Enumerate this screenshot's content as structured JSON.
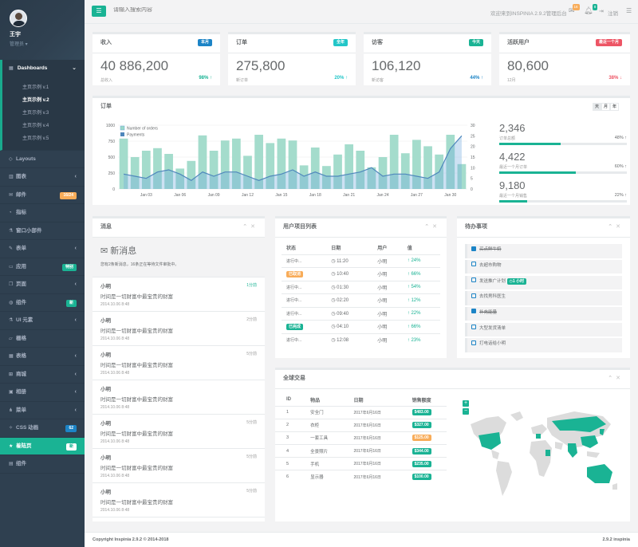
{
  "colors": {
    "primary": "#1ab394",
    "info": "#1c84c6",
    "warning": "#f8ac59",
    "danger": "#ed5565",
    "sidebar": "#2f4050"
  },
  "profile": {
    "name": "王宇",
    "role": "管理员 ▾"
  },
  "sidebar": {
    "dashboards": {
      "label": "Dashboards",
      "subs": [
        "主页示例 v.1",
        "主页示例 v.2",
        "主页示例 v.3",
        "主页示例 v.4",
        "主页示例 v.5"
      ]
    },
    "items": [
      {
        "label": "Layouts",
        "icon": "diamond-icon"
      },
      {
        "label": "图表",
        "icon": "bar-chart-icon"
      },
      {
        "label": "邮件",
        "icon": "envelope-icon",
        "badge": "16/24"
      },
      {
        "label": "指标",
        "icon": "pie-chart-icon"
      },
      {
        "label": "窗口小部件",
        "icon": "flask-icon"
      },
      {
        "label": "表单",
        "icon": "edit-icon"
      },
      {
        "label": "应用",
        "icon": "desktop-icon",
        "badge": "特别"
      },
      {
        "label": "页面",
        "icon": "files-icon"
      },
      {
        "label": "组件",
        "icon": "globe-icon",
        "badge": "新"
      },
      {
        "label": "UI 元素",
        "icon": "flask-icon"
      },
      {
        "label": "栅格",
        "icon": "laptop-icon"
      },
      {
        "label": "表格",
        "icon": "table-icon"
      },
      {
        "label": "商城",
        "icon": "shopping-cart-icon"
      },
      {
        "label": "相册",
        "icon": "picture-icon"
      },
      {
        "label": "菜单",
        "icon": "sitemap-icon"
      },
      {
        "label": "CSS 动画",
        "icon": "magic-icon",
        "badge": "62"
      },
      {
        "label": "着陆页",
        "icon": "star-icon",
        "badge": "新"
      },
      {
        "label": "组件",
        "icon": "database-icon"
      }
    ]
  },
  "topbar": {
    "search_placeholder": "请输入搜索内容",
    "welcome": "欢迎来到INSPINIA 2.9.2管理后台",
    "mail_count": "16",
    "bell_count": "8",
    "logout": "注销"
  },
  "stats": [
    {
      "title": "收入",
      "label": "本月",
      "label_color": "#1c84c6",
      "value": "40 886,200",
      "desc": "总收入",
      "pct": "98% ↑",
      "pct_color": "#1ab394"
    },
    {
      "title": "订单",
      "label": "全年",
      "label_color": "#23c6c8",
      "value": "275,800",
      "desc": "新订单",
      "pct": "20% ↑",
      "pct_color": "#23c6c8"
    },
    {
      "title": "访客",
      "label": "今天",
      "label_color": "#1ab394",
      "value": "106,120",
      "desc": "新访客",
      "pct": "44% ↑",
      "pct_color": "#1c84c6"
    },
    {
      "title": "活跃用户",
      "label": "最近一个月",
      "label_color": "#ed5565",
      "value": "80,600",
      "desc": "12月",
      "pct": "38% ↓",
      "pct_color": "#ed5565"
    }
  ],
  "orders_panel": {
    "title": "订单",
    "buttons": [
      "天",
      "月",
      "年"
    ]
  },
  "chart_data": {
    "type": "bar",
    "x": [
      "Jan 01",
      "Jan 02",
      "Jan 03",
      "Jan 04",
      "Jan 05",
      "Jan 06",
      "Jan 07",
      "Jan 08",
      "Jan 09",
      "Jan 10",
      "Jan 11",
      "Jan 12",
      "Jan 13",
      "Jan 14",
      "Jan 15",
      "Jan 16",
      "Jan 17",
      "Jan 18",
      "Jan 19",
      "Jan 20",
      "Jan 21",
      "Jan 22",
      "Jan 23",
      "Jan 24",
      "Jan 25",
      "Jan 26",
      "Jan 27",
      "Jan 28",
      "Jan 29",
      "Jan 30",
      "Jan 31"
    ],
    "xticks": [
      "Jan 03",
      "Jan 06",
      "Jan 09",
      "Jan 12",
      "Jan 15",
      "Jan 18",
      "Jan 21",
      "Jan 24",
      "Jan 27",
      "Jan 30"
    ],
    "series": [
      {
        "name": "Number of orders",
        "kind": "bar",
        "axis": "left",
        "color": "#9ad8c6",
        "values": [
          790,
          500,
          600,
          640,
          550,
          320,
          440,
          840,
          600,
          760,
          790,
          520,
          850,
          720,
          790,
          760,
          370,
          650,
          360,
          540,
          700,
          600,
          340,
          500,
          850,
          560,
          770,
          670,
          540,
          850,
          390
        ]
      },
      {
        "name": "Payments",
        "kind": "line",
        "axis": "right",
        "color": "#6fa8dc",
        "values": [
          7,
          6,
          5,
          8,
          9,
          7,
          4,
          8,
          6,
          8,
          8,
          6,
          4,
          6,
          7,
          9,
          6,
          8,
          6,
          6,
          7,
          8,
          10,
          6,
          7,
          7,
          6,
          5,
          8,
          19,
          25
        ]
      }
    ],
    "ylim_left": [
      0,
      1000
    ],
    "yticks_left": [
      0,
      250,
      500,
      750,
      1000
    ],
    "ylim_right": [
      0,
      30
    ],
    "yticks_right": [
      0,
      5,
      10,
      15,
      20,
      25,
      30
    ],
    "legend": "top-left",
    "grid": true
  },
  "side_stats": [
    {
      "value": "2,346",
      "desc": "订单总额",
      "pct": "48% ↑",
      "fill": 0.48
    },
    {
      "value": "4,422",
      "desc": "最近一个月订单",
      "pct": "60% ↑",
      "fill": 0.6
    },
    {
      "value": "9,180",
      "desc": "最近一个月销售",
      "pct": "22% ↑",
      "fill": 0.22
    }
  ],
  "messages": {
    "title": "消息",
    "head": "新消息",
    "sub": "您有2条新消息，16条正在等待文件审批中。",
    "items": [
      {
        "name": "小明",
        "text": "时间是一切财富中最宝贵的财富",
        "date": "2014.10.06 8:48",
        "ago": "1分前",
        "ago_color": "#1ab394"
      },
      {
        "name": "小明",
        "text": "时间是一切财富中最宝贵的财富",
        "date": "2014.10.06 8:48",
        "ago": "2分前",
        "ago_color": "#999"
      },
      {
        "name": "小明",
        "text": "时间是一切财富中最宝贵的财富",
        "date": "2014.10.06 8:48",
        "ago": "5分前",
        "ago_color": "#999"
      },
      {
        "name": "小明",
        "text": "时间是一切财富中最宝贵的财富",
        "date": "2014.10.06 8:48",
        "ago": "",
        "ago_color": "#999"
      },
      {
        "name": "小明",
        "text": "时间是一切财富中最宝贵的财富",
        "date": "2014.10.06 8:48",
        "ago": "5分前",
        "ago_color": "#999"
      },
      {
        "name": "小明",
        "text": "时间是一切财富中最宝贵的财富",
        "date": "2014.10.06 8:48",
        "ago": "5分前",
        "ago_color": "#999"
      },
      {
        "name": "小明",
        "text": "时间是一切财富中最宝贵的财富",
        "date": "2014.10.06 8:48",
        "ago": "5分前",
        "ago_color": "#999"
      }
    ]
  },
  "users_table": {
    "title": "用户项目列表",
    "headers": [
      "状态",
      "日期",
      "用户",
      "值"
    ],
    "rows": [
      {
        "status": "进行中...",
        "tag": "",
        "date": "11:20",
        "user": "小明",
        "value": "24%"
      },
      {
        "status": "",
        "tag": "已取消",
        "tag_color": "#f8ac59",
        "date": "10:40",
        "user": "小明",
        "value": "66%"
      },
      {
        "status": "进行中...",
        "tag": "",
        "date": "01:30",
        "user": "小明",
        "value": "54%"
      },
      {
        "status": "进行中...",
        "tag": "",
        "date": "02:20",
        "user": "小明",
        "value": "12%"
      },
      {
        "status": "进行中...",
        "tag": "",
        "date": "09:40",
        "user": "小明",
        "value": "22%"
      },
      {
        "status": "",
        "tag": "已完成",
        "tag_color": "#1ab394",
        "date": "04:10",
        "user": "小明",
        "value": "66%"
      },
      {
        "status": "进行中...",
        "tag": "",
        "date": "12:08",
        "user": "小明",
        "value": "23%"
      }
    ]
  },
  "todo": {
    "title": "待办事项",
    "items": [
      {
        "text": "买点鲜牛奶",
        "checked": true,
        "tag": ""
      },
      {
        "text": "去超市购物",
        "checked": false,
        "tag": ""
      },
      {
        "text": "发送推广计划",
        "checked": false,
        "tag": "1 小时"
      },
      {
        "text": "去找男科医生",
        "checked": false,
        "tag": ""
      },
      {
        "text": "补充能量",
        "checked": true,
        "tag": ""
      },
      {
        "text": "大型发货清单",
        "checked": false,
        "tag": ""
      },
      {
        "text": "打电话给小明",
        "checked": false,
        "tag": ""
      }
    ]
  },
  "global": {
    "title": "全球交易",
    "headers": [
      "ID",
      "物品",
      "日期",
      "销售额度"
    ],
    "rows": [
      {
        "id": "1",
        "item": "安全门",
        "date": "2017年6月16日",
        "amount": "$483.00",
        "color": "#1ab394"
      },
      {
        "id": "2",
        "item": "衣柜",
        "date": "2017年6月16日",
        "amount": "$327.00",
        "color": "#1ab394"
      },
      {
        "id": "3",
        "item": "一套工具",
        "date": "2017年6月16日",
        "amount": "$125.00",
        "color": "#f8ac59"
      },
      {
        "id": "4",
        "item": "全景照片",
        "date": "2017年6月16日",
        "amount": "$344.00",
        "color": "#1ab394"
      },
      {
        "id": "5",
        "item": "手机",
        "date": "2017年6月16日",
        "amount": "$235.00",
        "color": "#1ab394"
      },
      {
        "id": "6",
        "item": "显示器",
        "date": "2017年6月16日",
        "amount": "$100.00",
        "color": "#1ab394"
      }
    ],
    "zoom_in": "+",
    "zoom_out": "−"
  },
  "footer": {
    "left": "Copyright Inspinia 2.9.2 © 2014-2018",
    "right": "2.9.2 inspinia"
  }
}
